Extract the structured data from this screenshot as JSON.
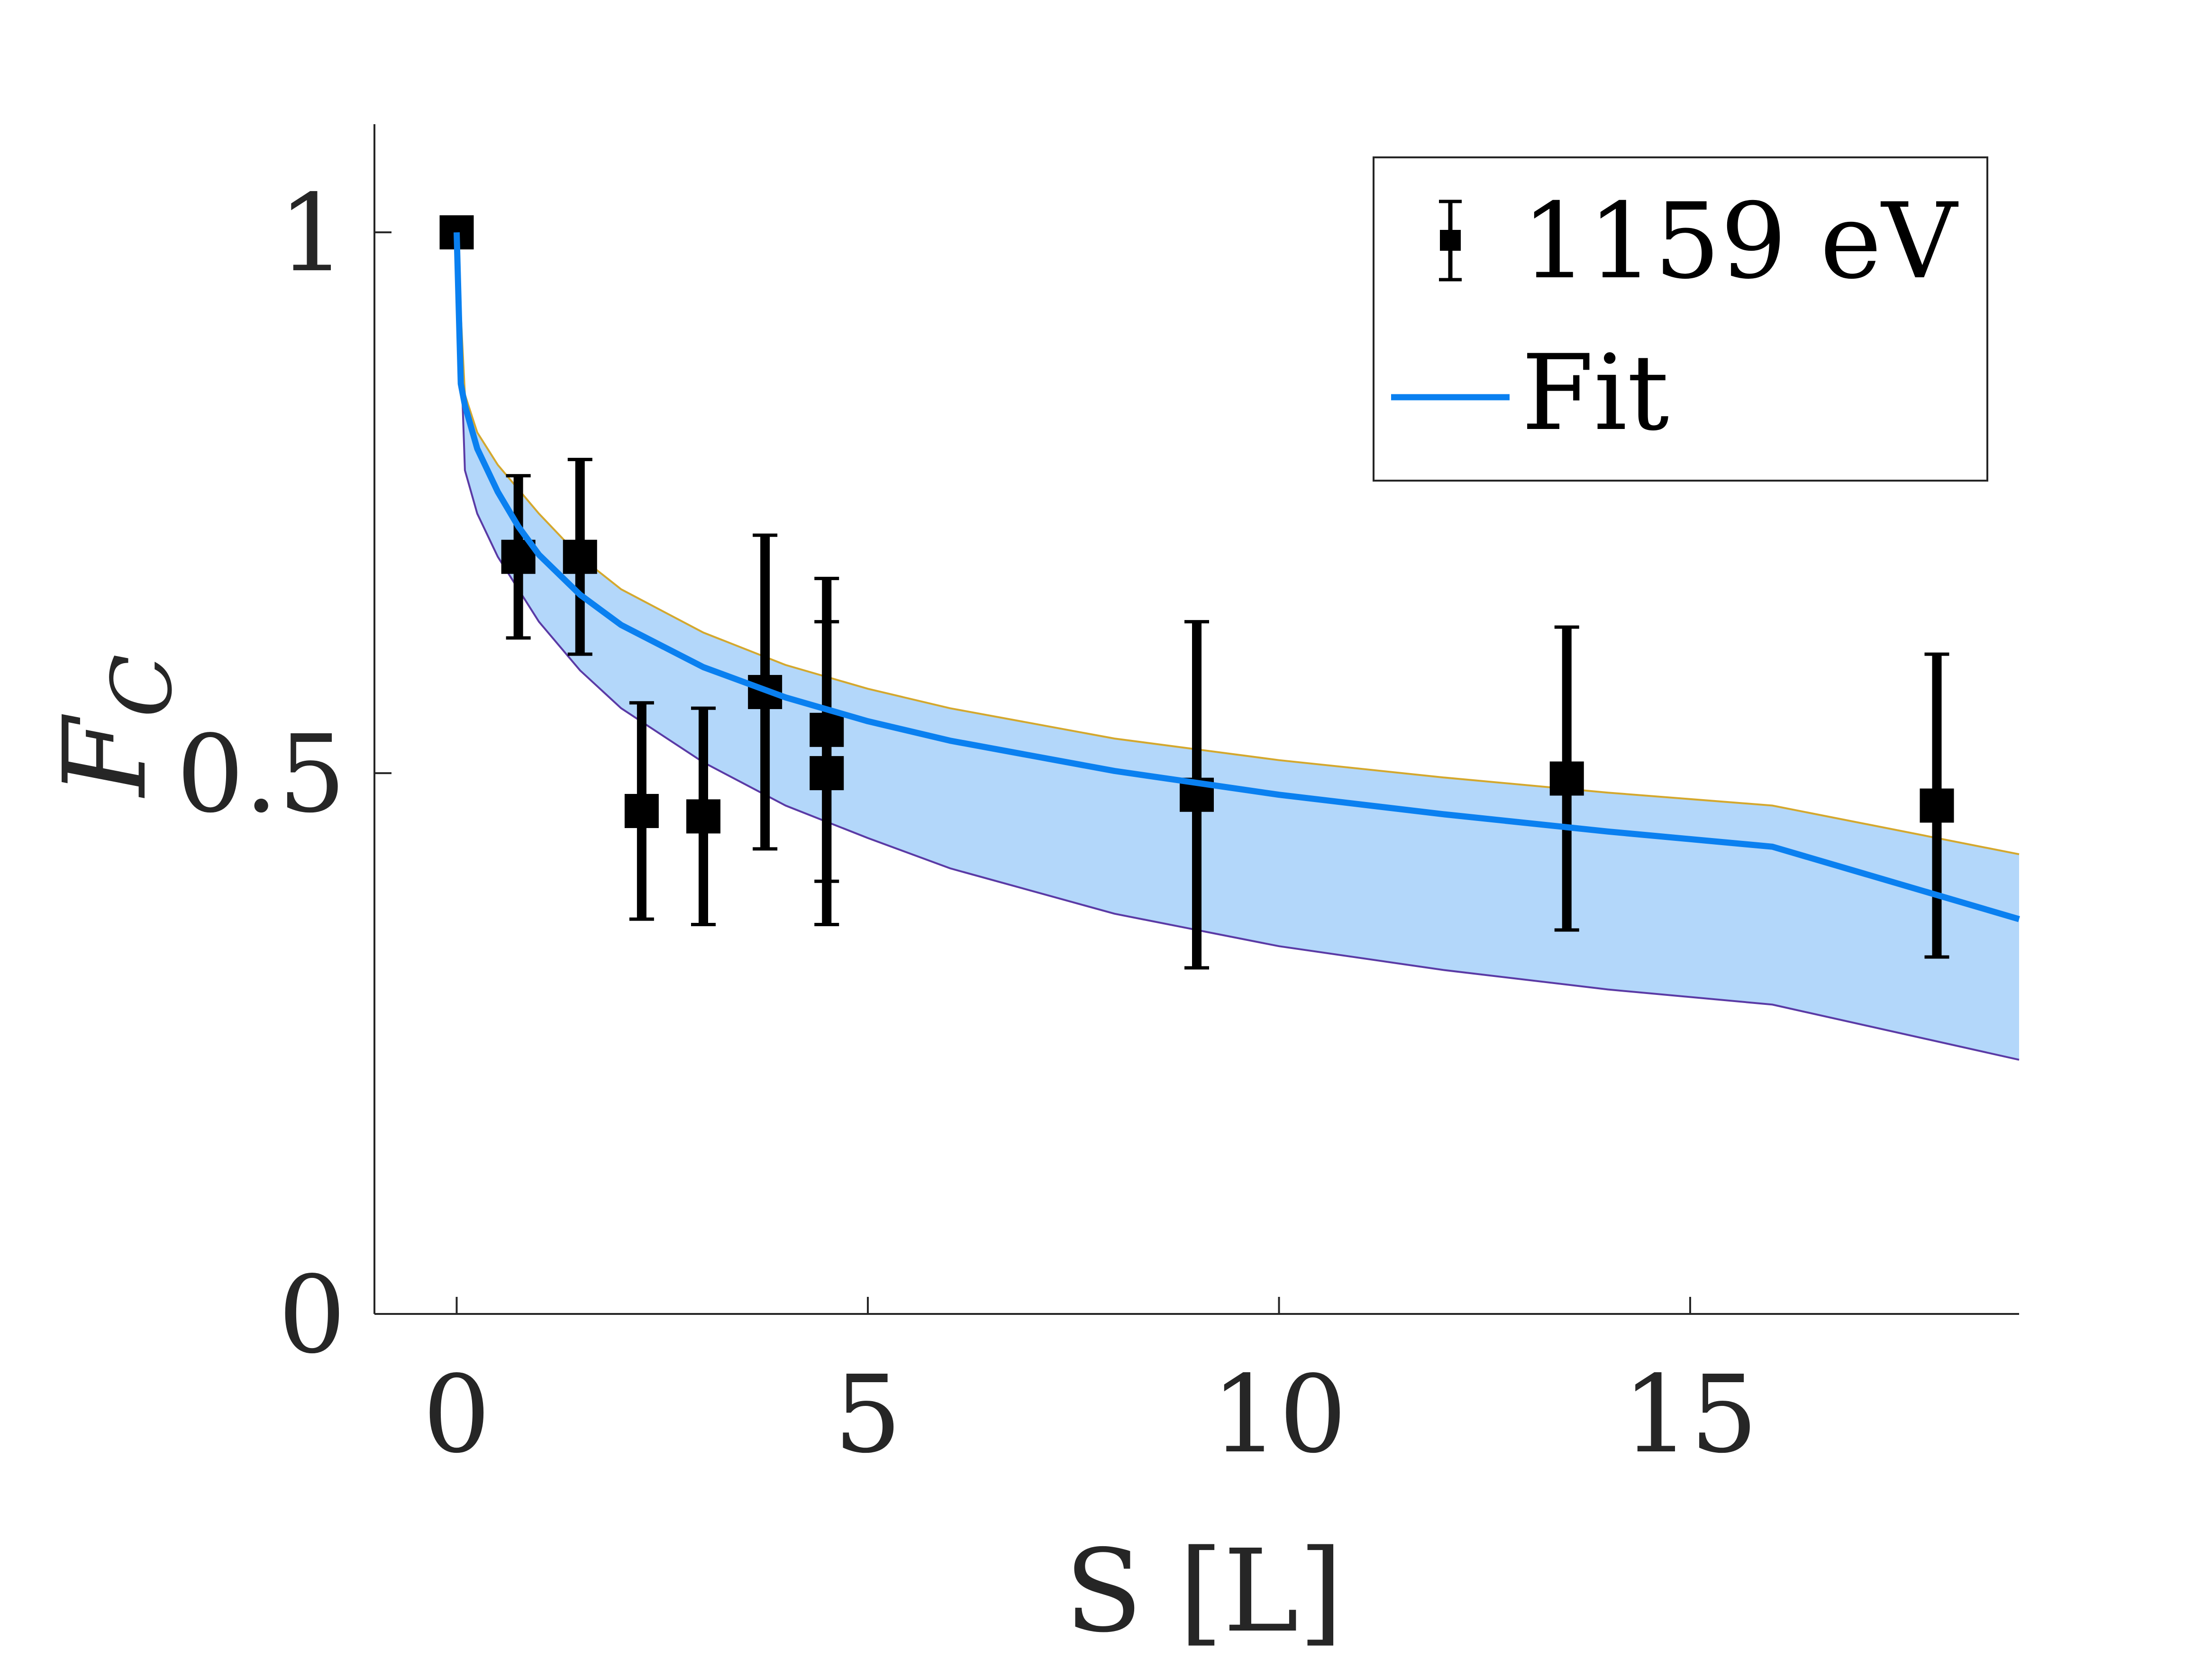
{
  "chart_data": {
    "type": "scatter",
    "title": "",
    "xlabel": "S [L]",
    "ylabel_main": "F",
    "ylabel_sub": "C",
    "xlim": [
      -1,
      19
    ],
    "ylim": [
      0,
      1.1
    ],
    "xticks": [
      0,
      5,
      10,
      15
    ],
    "xtick_labels": [
      "0",
      "5",
      "10",
      "15"
    ],
    "yticks": [
      0,
      0.5,
      1
    ],
    "ytick_labels": [
      "0",
      "0.5",
      "1"
    ],
    "grid": false,
    "legend_position": "top-right",
    "series": [
      {
        "name": "1159 eV",
        "kind": "errorbar",
        "color": "#000000",
        "x": [
          0,
          0.75,
          1.5,
          2.25,
          3.0,
          3.75,
          4.5,
          4.5,
          9.0,
          13.5,
          18.0
        ],
        "y": [
          1.0,
          0.7,
          0.7,
          0.465,
          0.46,
          0.575,
          0.54,
          0.5,
          0.48,
          0.495,
          0.47
        ],
        "err_low": [
          0,
          0.075,
          0.09,
          0.1,
          0.1,
          0.145,
          0.14,
          0.14,
          0.16,
          0.14,
          0.14
        ],
        "err_high": [
          0,
          0.075,
          0.09,
          0.1,
          0.1,
          0.145,
          0.14,
          0.14,
          0.16,
          0.14,
          0.14
        ]
      },
      {
        "name": "Fit",
        "kind": "line",
        "color": "#0A80F0",
        "x": [
          0,
          0.05,
          0.1,
          0.25,
          0.5,
          0.75,
          1,
          1.5,
          2,
          3,
          4,
          5,
          6,
          8,
          10,
          12,
          14,
          16,
          19
        ],
        "y": [
          1.0,
          0.86,
          0.84,
          0.8,
          0.76,
          0.728,
          0.702,
          0.665,
          0.637,
          0.598,
          0.57,
          0.548,
          0.53,
          0.502,
          0.48,
          0.462,
          0.446,
          0.432,
          0.365
        ]
      }
    ],
    "band": {
      "name": "fit confidence band",
      "fill": "#B3D7FA",
      "upper_edge_color": "#D4A82E",
      "lower_edge_color": "#5A3AA5",
      "x": [
        0,
        0.1,
        0.25,
        0.5,
        1,
        1.5,
        2,
        3,
        4,
        5,
        6,
        8,
        10,
        12,
        14,
        16,
        19
      ],
      "upper": [
        1.0,
        0.85,
        0.815,
        0.785,
        0.74,
        0.7,
        0.67,
        0.63,
        0.6,
        0.578,
        0.56,
        0.532,
        0.512,
        0.496,
        0.482,
        0.47,
        0.425
      ],
      "lower": [
        1.0,
        0.78,
        0.74,
        0.7,
        0.64,
        0.595,
        0.56,
        0.51,
        0.47,
        0.44,
        0.412,
        0.37,
        0.34,
        0.318,
        0.3,
        0.286,
        0.235
      ]
    }
  }
}
